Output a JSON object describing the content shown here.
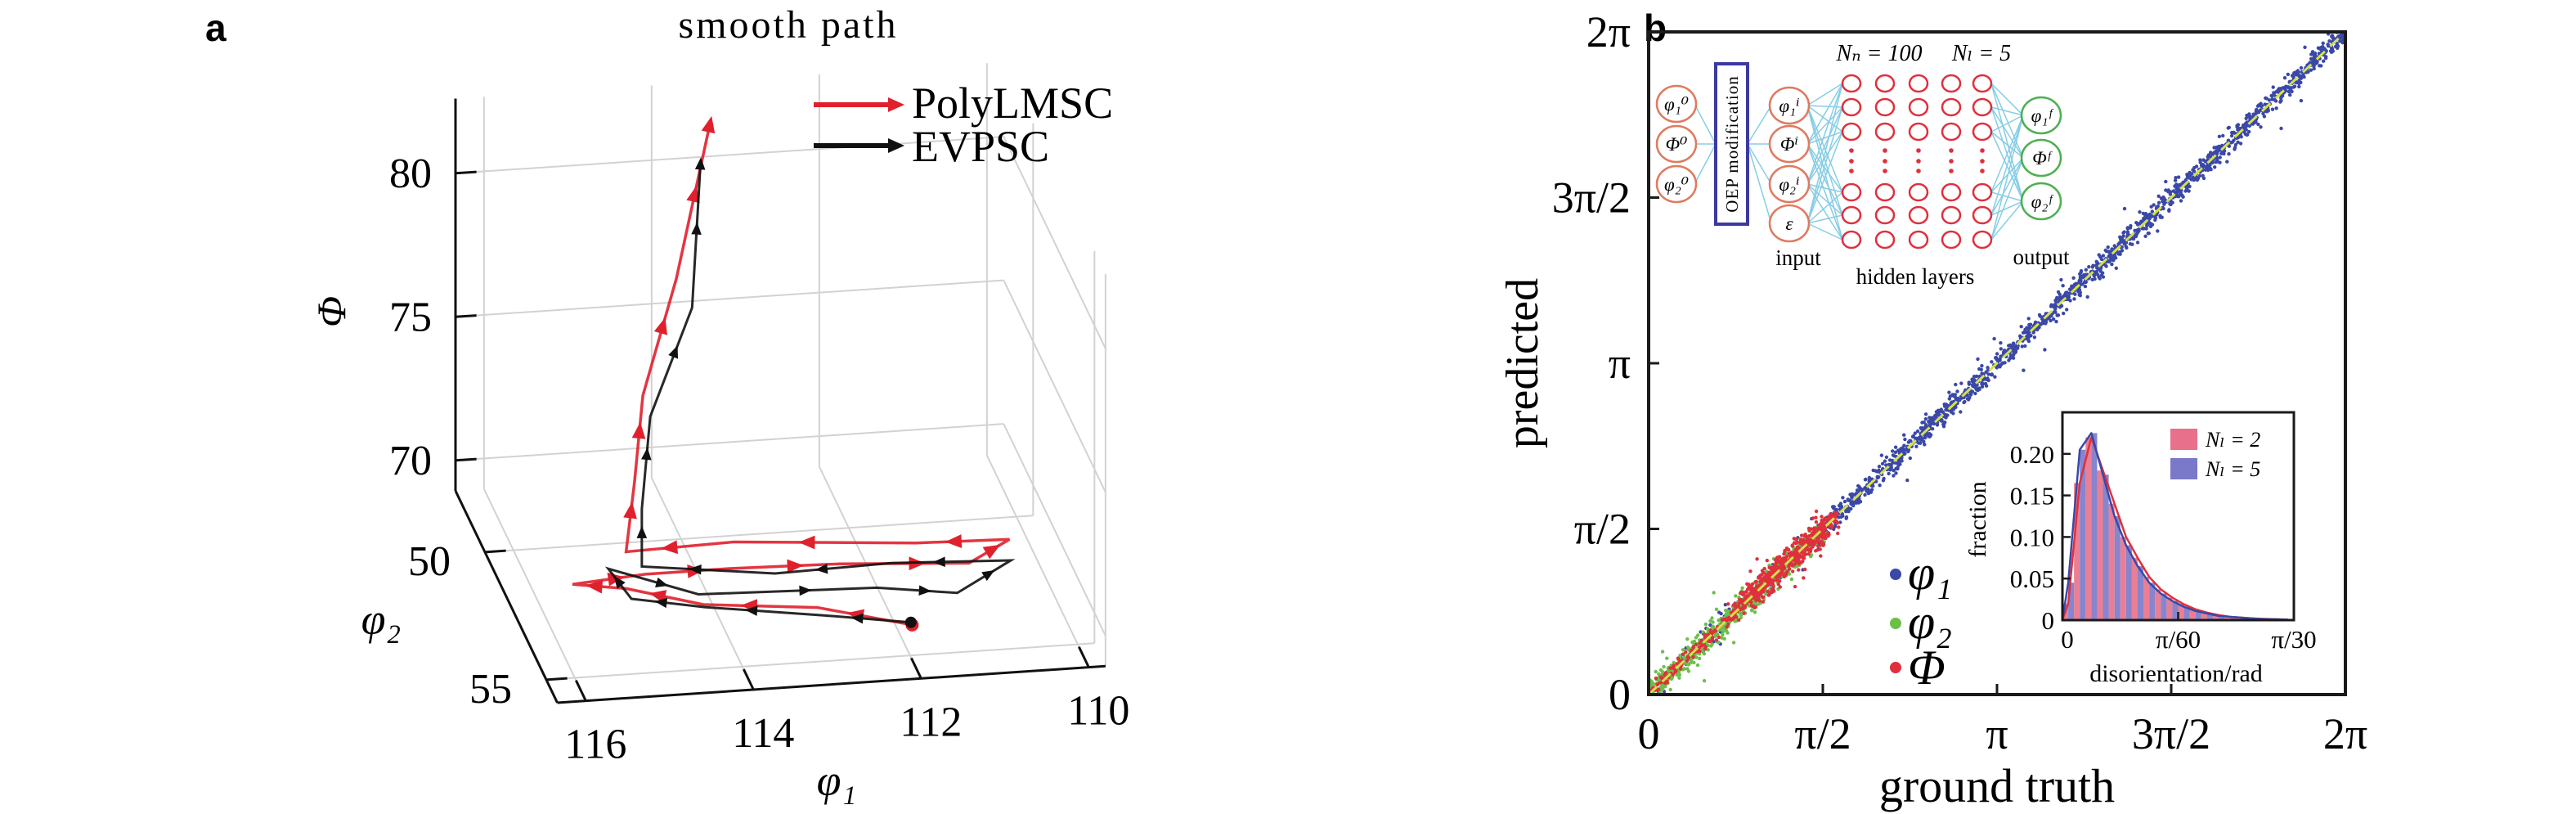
{
  "chart_data": [
    {
      "panel_label": "a",
      "type": "line",
      "projection": "3d",
      "title": "smooth path",
      "xlabel": "φ₁",
      "ylabel": "φ₂",
      "zlabel": "Φ",
      "x_ticks": [
        116,
        114,
        112,
        110
      ],
      "y_ticks": [
        50,
        55
      ],
      "z_ticks": [
        80,
        75,
        70
      ],
      "x_tick_labels": [
        "116",
        "114",
        "112",
        "110"
      ],
      "y_tick_labels": [
        "50",
        "55"
      ],
      "z_tick_labels": [
        "80",
        "75",
        "70"
      ],
      "xlim": [
        109.8,
        116.34
      ],
      "ylim": [
        47.6,
        55.9
      ],
      "zlim": [
        68.94,
        82.6
      ],
      "grid": true,
      "legend_position": "top-right",
      "series": [
        {
          "name": "PolyLMSC",
          "color": "#e0202c",
          "points": [
            [
              111.8,
              53.8,
              68.9
            ],
            [
              112.8,
              52.9,
              68.9
            ],
            [
              114.1,
              52.5,
              68.9
            ],
            [
              114.9,
              51.7,
              68.9
            ],
            [
              115.5,
              51.4,
              68.9
            ],
            [
              114.6,
              51.2,
              68.9
            ],
            [
              113.6,
              51.2,
              68.9
            ],
            [
              112.3,
              51.3,
              68.9
            ],
            [
              110.8,
              51.6,
              68.9
            ],
            [
              110.2,
              50.8,
              68.9
            ],
            [
              111.3,
              50.7,
              68.9
            ],
            [
              113.4,
              50.2,
              68.9
            ],
            [
              114.7,
              50.3,
              68.9
            ],
            [
              114.6,
              50.3,
              71.3
            ],
            [
              114.5,
              50.3,
              74.3
            ],
            [
              114.1,
              50.3,
              78.3
            ],
            [
              113.7,
              50.3,
              83.6
            ]
          ]
        },
        {
          "name": "EVPSC",
          "color": "#111111",
          "points": [
            [
              111.8,
              53.7,
              68.9
            ],
            [
              112.8,
              53.2,
              68.9
            ],
            [
              114.1,
              52.6,
              68.9
            ],
            [
              114.9,
              52.1,
              68.9
            ],
            [
              115.0,
              50.9,
              68.9
            ],
            [
              114.1,
              52.1,
              68.9
            ],
            [
              112.0,
              52.3,
              68.9
            ],
            [
              111.1,
              52.7,
              68.9
            ],
            [
              110.3,
              51.6,
              68.9
            ],
            [
              111.7,
              51.4,
              68.9
            ],
            [
              113.1,
              51.5,
              68.9
            ],
            [
              114.6,
              50.9,
              68.9
            ],
            [
              114.6,
              50.9,
              70.9
            ],
            [
              114.5,
              50.9,
              74.1
            ],
            [
              114.0,
              50.9,
              77.8
            ],
            [
              113.9,
              50.9,
              82.8
            ]
          ]
        }
      ]
    },
    {
      "panel_label": "b",
      "type": "scatter",
      "xlabel": "ground truth",
      "ylabel": "predicted",
      "xlim": [
        0,
        6.2832
      ],
      "ylim": [
        0,
        6.2832
      ],
      "ticks": [
        0,
        1.5708,
        3.1416,
        4.7124,
        6.2832
      ],
      "x_tick_labels": [
        "0",
        "π/2",
        "π",
        "3π/2",
        "2π"
      ],
      "y_tick_labels": [
        "0",
        "π/2",
        "π",
        "3π/2",
        "2π"
      ],
      "reference_line": {
        "from": [
          0,
          0
        ],
        "to": [
          6.2832,
          6.2832
        ],
        "style": "dashed",
        "color": "#d6e04a"
      },
      "legend_position": "bottom-center",
      "series": [
        {
          "name": "φ₁",
          "color": "#3a48a8",
          "clusters": [
            {
              "x_range": [
                0,
                1.6
              ],
              "count": 120,
              "spread": 0.06
            },
            {
              "x_range": [
                1.55,
                6.28
              ],
              "count": 1500,
              "spread": 0.05
            }
          ]
        },
        {
          "name": "φ₂",
          "color": "#6cc04a",
          "clusters": [
            {
              "x_range": [
                0,
                1.55
              ],
              "count": 650,
              "spread": 0.06
            }
          ]
        },
        {
          "name": "Φ",
          "color": "#e0303c",
          "clusters": [
            {
              "x_range": [
                0,
                0.85
              ],
              "count": 150,
              "spread": 0.035
            },
            {
              "x_range": [
                0.85,
                1.65
              ],
              "count": 550,
              "spread": 0.07
            }
          ]
        }
      ]
    },
    {
      "panel_label": "b-inset",
      "type": "bar",
      "xlabel": "disorientation/rad",
      "ylabel": "fraction",
      "xlim": [
        0,
        0.10472
      ],
      "ylim": [
        0,
        0.25
      ],
      "x_ticks": [
        0,
        0.05236,
        0.10472
      ],
      "x_tick_labels": [
        "0",
        "π/60",
        "π/30"
      ],
      "y_ticks": [
        0,
        0.05,
        0.1,
        0.15,
        0.2
      ],
      "y_tick_labels": [
        "0",
        "0.05",
        "0.10",
        "0.15",
        "0.20"
      ],
      "bin_width": 0.005236,
      "legend_position": "top-right",
      "series": [
        {
          "name": "Nₗ = 2",
          "color": "#e8708a",
          "line_color": "#e0303a",
          "values": [
            0.02,
            0.165,
            0.22,
            0.18,
            0.14,
            0.1,
            0.075,
            0.052,
            0.037,
            0.027,
            0.019,
            0.013,
            0.009,
            0.006,
            0.004,
            0.003,
            0.002,
            0.0015,
            0.001,
            0.0005
          ]
        },
        {
          "name": "Nₗ = 5",
          "color": "#7a78c8",
          "line_color": "#3a48a8",
          "values": [
            0.045,
            0.205,
            0.225,
            0.175,
            0.125,
            0.09,
            0.065,
            0.045,
            0.032,
            0.023,
            0.016,
            0.011,
            0.008,
            0.005,
            0.004,
            0.003,
            0.002,
            0.001,
            0.001,
            0.0005
          ]
        }
      ]
    }
  ],
  "network_diagram": {
    "header_nodes": "Nₙ = 100",
    "header_layers": "Nₗ = 5",
    "oep_label": "OEP modification",
    "initial_nodes": [
      "φ₁⁰",
      "Φ⁰",
      "φ₂⁰"
    ],
    "input_nodes": [
      "φ₁ⁱ",
      "Φⁱ",
      "φ₂ⁱ",
      "ε"
    ],
    "output_nodes": [
      "φ₁ᶠ",
      "Φᶠ",
      "φ₂ᶠ"
    ],
    "input_label": "input",
    "hidden_label": "hidden layers",
    "output_label": "output",
    "colors": {
      "initial": "#e07a5f",
      "hidden": "#e0303c",
      "output": "#4cb050",
      "edges": "#86cde6",
      "oep_box": "#3a3aa0"
    }
  }
}
